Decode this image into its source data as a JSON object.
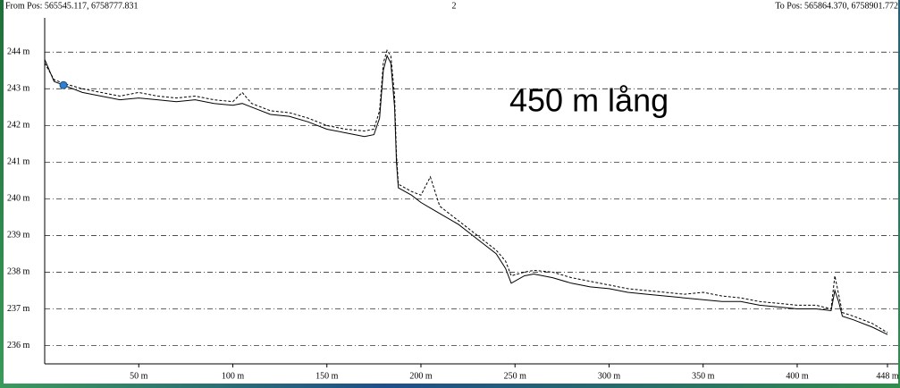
{
  "chart_data": {
    "type": "line",
    "from_label": "From Pos: 565545.117, 6758777.831",
    "page_label": "2",
    "to_label": "To Pos: 565864.370, 6758901.772",
    "annotation": "450 m lång",
    "x": [
      0,
      5,
      10,
      20,
      30,
      40,
      50,
      60,
      70,
      80,
      90,
      100,
      105,
      110,
      120,
      130,
      140,
      150,
      160,
      170,
      175,
      178,
      180,
      182,
      184,
      186,
      187,
      188,
      195,
      200,
      205,
      210,
      220,
      230,
      240,
      245,
      248,
      255,
      260,
      270,
      280,
      290,
      300,
      310,
      320,
      330,
      340,
      350,
      360,
      370,
      380,
      390,
      400,
      410,
      418,
      420,
      422,
      424,
      430,
      440,
      448
    ],
    "series": [
      {
        "color": "#000000",
        "dash": "solid",
        "values": [
          243.8,
          243.2,
          243.1,
          242.9,
          242.8,
          242.7,
          242.75,
          242.7,
          242.65,
          242.7,
          242.6,
          242.55,
          242.6,
          242.5,
          242.3,
          242.25,
          242.1,
          241.9,
          241.8,
          241.7,
          241.75,
          242.2,
          243.5,
          243.9,
          243.7,
          242.5,
          241,
          240.3,
          240.1,
          239.9,
          239.75,
          239.6,
          239.3,
          238.9,
          238.5,
          238.1,
          237.7,
          237.9,
          237.95,
          237.85,
          237.7,
          237.6,
          237.55,
          237.45,
          237.4,
          237.35,
          237.3,
          237.25,
          237.2,
          237.2,
          237.1,
          237.05,
          237,
          237,
          236.95,
          237.5,
          237.2,
          236.8,
          236.7,
          236.5,
          236.3
        ]
      },
      {
        "color": "#000000",
        "dash": "dashed",
        "values": [
          243.7,
          243.25,
          243.15,
          243,
          242.9,
          242.8,
          242.9,
          242.8,
          242.75,
          242.8,
          242.7,
          242.65,
          242.9,
          242.6,
          242.4,
          242.35,
          242.2,
          242,
          241.9,
          241.85,
          241.9,
          242.4,
          243.7,
          244.05,
          243.9,
          242.8,
          241.2,
          240.4,
          240.2,
          240.1,
          240.6,
          239.8,
          239.4,
          239,
          238.6,
          238.3,
          237.9,
          238,
          238.05,
          238,
          237.85,
          237.75,
          237.65,
          237.55,
          237.5,
          237.45,
          237.4,
          237.45,
          237.35,
          237.3,
          237.2,
          237.15,
          237.1,
          237.1,
          237,
          237.9,
          237.4,
          236.9,
          236.8,
          236.6,
          236.35
        ]
      }
    ],
    "marker": {
      "x": 10,
      "y": 243.1,
      "color": "#2f7fd0"
    },
    "xlim": [
      0,
      448
    ],
    "ylim": [
      235.5,
      244.3
    ],
    "xticks": [
      {
        "value": 50,
        "label": "50 m"
      },
      {
        "value": 100,
        "label": "100 m"
      },
      {
        "value": 150,
        "label": "150 m"
      },
      {
        "value": 200,
        "label": "200 m"
      },
      {
        "value": 250,
        "label": "250 m"
      },
      {
        "value": 300,
        "label": "300 m"
      },
      {
        "value": 350,
        "label": "350 m"
      },
      {
        "value": 400,
        "label": "400 m"
      },
      {
        "value": 448,
        "label": "448 m"
      }
    ],
    "yticks": [
      {
        "value": 236,
        "label": "236 m"
      },
      {
        "value": 237,
        "label": "237 m"
      },
      {
        "value": 238,
        "label": "238 m"
      },
      {
        "value": 239,
        "label": "239 m"
      },
      {
        "value": 240,
        "label": "240 m"
      },
      {
        "value": 241,
        "label": "241 m"
      },
      {
        "value": 242,
        "label": "242 m"
      },
      {
        "value": 243,
        "label": "243 m"
      },
      {
        "value": 244,
        "label": "244 m"
      }
    ],
    "grid": true
  }
}
